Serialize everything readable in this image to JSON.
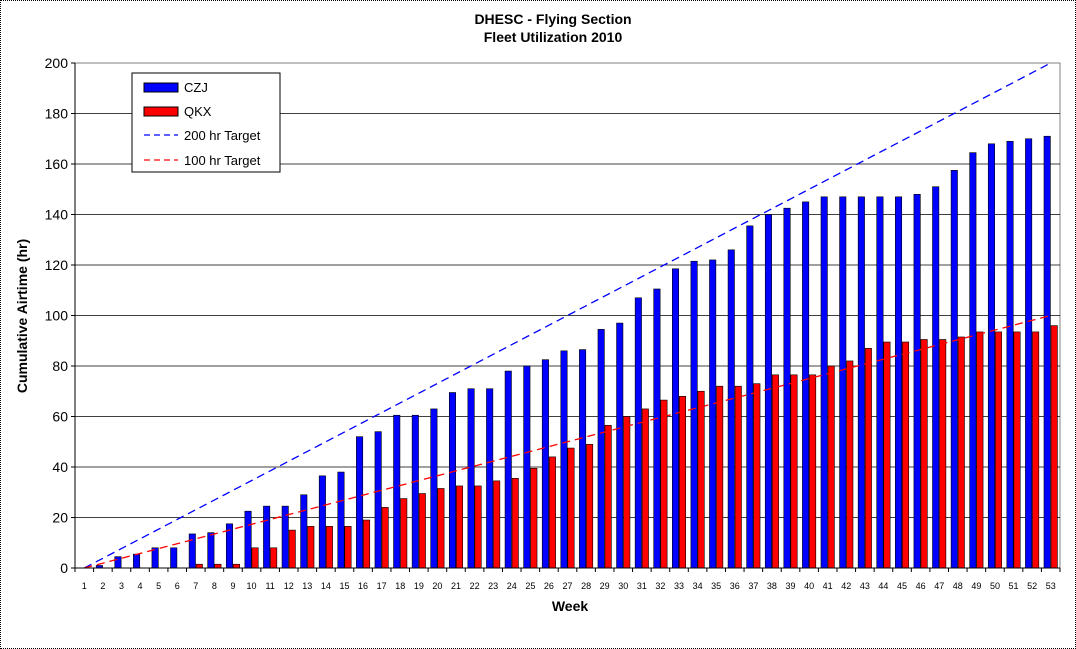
{
  "chart_data": {
    "type": "bar",
    "title": "DHESC - Flying Section",
    "subtitle": "Fleet Utilization 2010",
    "xlabel": "Week",
    "ylabel": "Cumulative Airtime (hr)",
    "ylim": [
      0,
      200
    ],
    "yticks": [
      0,
      20,
      40,
      60,
      80,
      100,
      120,
      140,
      160,
      180,
      200
    ],
    "grid": true,
    "legend_position": "top-left",
    "categories": [
      "1",
      "2",
      "3",
      "4",
      "5",
      "6",
      "7",
      "8",
      "9",
      "10",
      "11",
      "12",
      "13",
      "14",
      "15",
      "16",
      "17",
      "18",
      "19",
      "20",
      "21",
      "22",
      "23",
      "24",
      "25",
      "26",
      "27",
      "28",
      "29",
      "30",
      "31",
      "32",
      "33",
      "34",
      "35",
      "36",
      "37",
      "38",
      "39",
      "40",
      "41",
      "42",
      "43",
      "44",
      "45",
      "46",
      "47",
      "48",
      "49",
      "50",
      "51",
      "52",
      "53"
    ],
    "series": [
      {
        "name": "CZJ",
        "color": "#0000ff",
        "values": [
          0,
          1,
          4.5,
          5.5,
          8,
          8,
          13.5,
          14,
          17.5,
          22.5,
          24.5,
          24.5,
          29,
          36.5,
          38,
          52,
          54,
          60.5,
          60.5,
          63,
          69.5,
          71,
          71,
          78,
          80,
          82.5,
          86,
          86.5,
          94.5,
          97,
          107,
          110.5,
          118.5,
          121.5,
          122,
          126,
          135.5,
          140,
          142.5,
          145,
          147,
          147,
          147,
          147,
          147,
          148,
          151,
          157.5,
          164.5,
          168,
          169,
          170,
          171
        ]
      },
      {
        "name": "QKX",
        "color": "#ff0000",
        "values": [
          0,
          0,
          0,
          0,
          0,
          0,
          1.5,
          1.5,
          1.5,
          8,
          8,
          15,
          16.5,
          16.5,
          16.5,
          19,
          24,
          27.5,
          29.5,
          31.5,
          32.5,
          32.5,
          34.5,
          35.5,
          39.5,
          44,
          47.5,
          49,
          56.5,
          60,
          63,
          66.5,
          68,
          70,
          72,
          72,
          73,
          76.5,
          76.5,
          76.5,
          80,
          82,
          87,
          89.5,
          89.5,
          90.5,
          90.5,
          91.5,
          93.5,
          93.5,
          93.5,
          93.5,
          96
        ]
      }
    ],
    "reference_lines": [
      {
        "name": "200 hr Target",
        "color": "#0000ff",
        "style": "dashed",
        "from": [
          1,
          0
        ],
        "to": [
          53,
          200
        ]
      },
      {
        "name": "100 hr Target",
        "color": "#ff0000",
        "style": "dashed",
        "from": [
          1,
          0
        ],
        "to": [
          53,
          100
        ]
      }
    ]
  }
}
